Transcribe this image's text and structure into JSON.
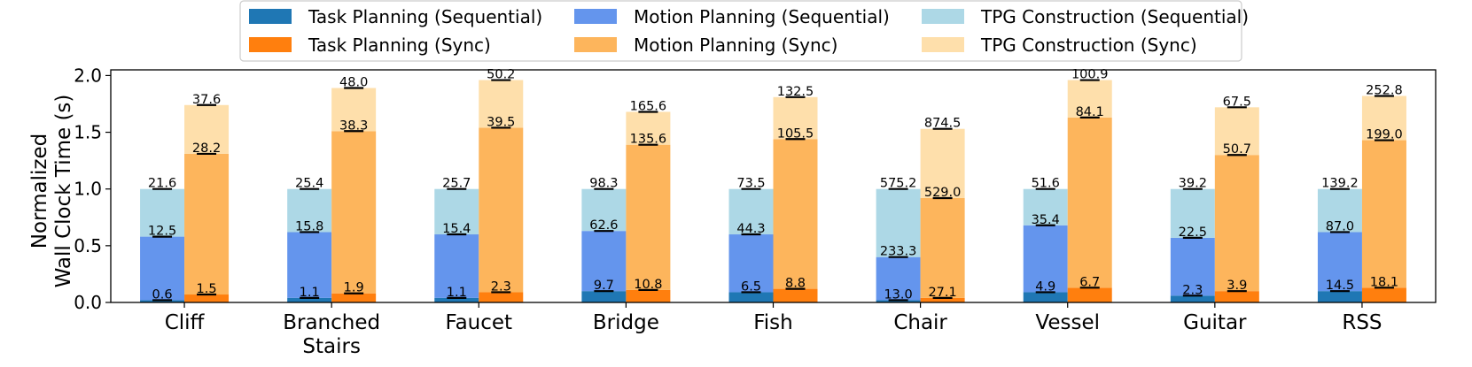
{
  "chart_data": {
    "type": "bar",
    "subtype": "stacked-grouped",
    "ylabel_lines": [
      "Normalized",
      "Wall Clock Time (s)"
    ],
    "ylim": [
      0,
      2.0
    ],
    "yticks": [
      "0.0",
      "0.5",
      "1.0",
      "1.5",
      "2.0"
    ],
    "ytick_values": [
      0,
      0.5,
      1.0,
      1.5,
      2.0
    ],
    "categories": [
      {
        "lines": [
          "Cliff"
        ]
      },
      {
        "lines": [
          "Branched",
          "Stairs"
        ]
      },
      {
        "lines": [
          "Faucet"
        ]
      },
      {
        "lines": [
          "Bridge"
        ]
      },
      {
        "lines": [
          "Fish"
        ]
      },
      {
        "lines": [
          "Chair"
        ]
      },
      {
        "lines": [
          "Vessel"
        ]
      },
      {
        "lines": [
          "Guitar"
        ]
      },
      {
        "lines": [
          "RSS"
        ]
      }
    ],
    "legend": [
      {
        "label": "Task Planning (Sequential)",
        "color": "#1f77b4"
      },
      {
        "label": "Motion Planning (Sequential)",
        "color": "#6495ed"
      },
      {
        "label": "TPG Construction (Sequential)",
        "color": "#add8e6"
      },
      {
        "label": "Task Planning (Sync)",
        "color": "#ff7f0e"
      },
      {
        "label": "Motion Planning (Sync)",
        "color": "#fdb55c"
      },
      {
        "label": "TPG Construction (Sync)",
        "color": "#fedfab"
      }
    ],
    "groups": {
      "sequential": {
        "colors": [
          "#1f77b4",
          "#6495ed",
          "#add8e6"
        ],
        "task_planning": [
          0.02,
          0.04,
          0.04,
          0.1,
          0.09,
          0.02,
          0.09,
          0.06,
          0.1
        ],
        "motion_planning": [
          0.58,
          0.62,
          0.6,
          0.63,
          0.6,
          0.4,
          0.68,
          0.57,
          0.62
        ],
        "tpg_construction": [
          1.0,
          1.0,
          1.0,
          1.0,
          1.0,
          1.0,
          1.0,
          1.0,
          1.0
        ],
        "labels": {
          "task_planning": [
            "0.6",
            "1.1",
            "1.1",
            "9.7",
            "6.5",
            "13.0",
            "4.9",
            "2.3",
            "14.5"
          ],
          "motion_planning": [
            "12.5",
            "15.8",
            "15.4",
            "62.6",
            "44.3",
            "233.3",
            "35.4",
            "22.5",
            "87.0"
          ],
          "tpg_construction": [
            "21.6",
            "25.4",
            "25.7",
            "98.3",
            "73.5",
            "575.2",
            "51.6",
            "39.2",
            "139.2"
          ]
        }
      },
      "sync": {
        "colors": [
          "#ff7f0e",
          "#fdb55c",
          "#fedfab"
        ],
        "task_planning": [
          0.07,
          0.08,
          0.09,
          0.11,
          0.12,
          0.04,
          0.13,
          0.1,
          0.13
        ],
        "motion_planning": [
          1.31,
          1.51,
          1.54,
          1.39,
          1.44,
          0.92,
          1.63,
          1.3,
          1.43
        ],
        "tpg_construction": [
          1.74,
          1.89,
          1.96,
          1.68,
          1.81,
          1.53,
          1.96,
          1.72,
          1.82
        ],
        "labels": {
          "task_planning": [
            "1.5",
            "1.9",
            "2.3",
            "10.8",
            "8.8",
            "27.1",
            "6.7",
            "3.9",
            "18.1"
          ],
          "motion_planning": [
            "28.2",
            "38.3",
            "39.5",
            "135.6",
            "105.5",
            "529.0",
            "84.1",
            "50.7",
            "199.0"
          ],
          "tpg_construction": [
            "37.6",
            "48.0",
            "50.2",
            "165.6",
            "132.5",
            "874.5",
            "100.9",
            "67.5",
            "252.8"
          ]
        }
      }
    }
  }
}
